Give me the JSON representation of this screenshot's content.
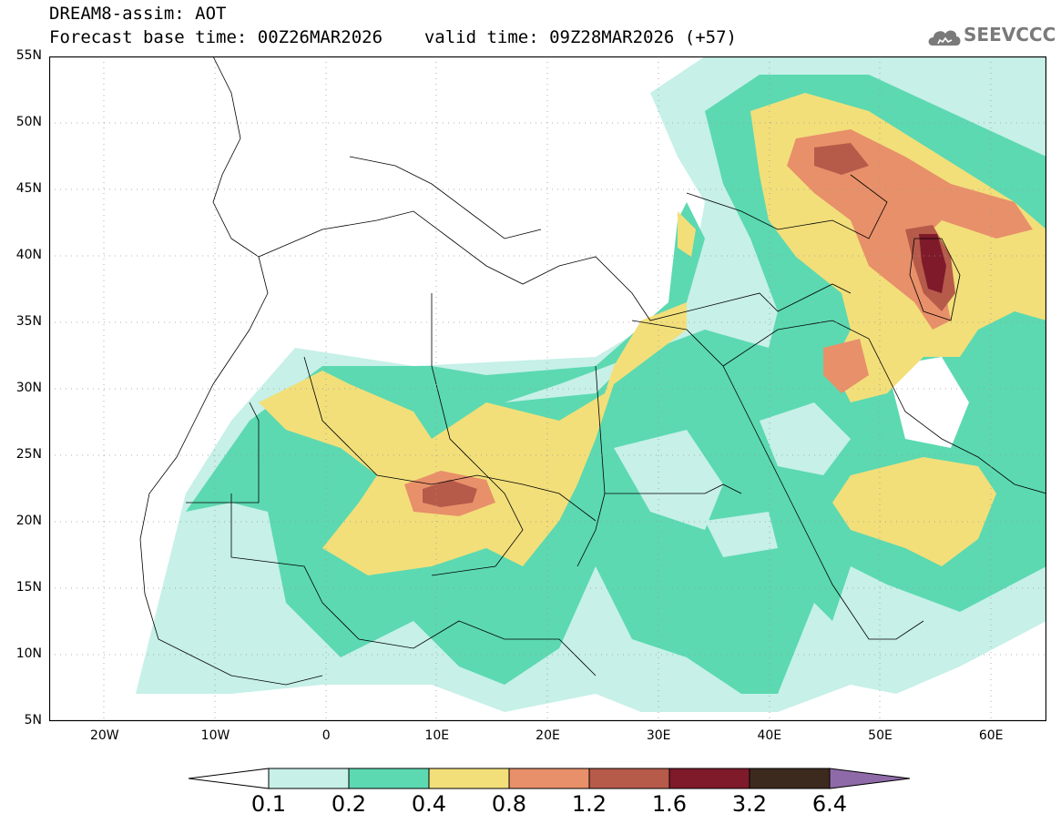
{
  "header": {
    "title_line1": "DREAM8-assim: AOT",
    "base_time_label": "Forecast base time: 00Z26MAR2026",
    "valid_time_label": "valid time: 09Z28MAR2026 (+57)",
    "logo_text": "SEEVCCC"
  },
  "map": {
    "lat_ticks": [
      "55N",
      "50N",
      "45N",
      "40N",
      "35N",
      "30N",
      "25N",
      "20N",
      "15N",
      "10N",
      "5N"
    ],
    "lon_ticks": [
      "20W",
      "10W",
      "0",
      "10E",
      "20E",
      "30E",
      "40E",
      "50E",
      "60E"
    ],
    "lat_values": [
      55,
      50,
      45,
      40,
      35,
      30,
      25,
      20,
      15,
      10,
      5
    ],
    "lon_values": [
      -20,
      -10,
      0,
      10,
      20,
      30,
      40,
      50,
      60
    ],
    "extent": {
      "lon_min": -25,
      "lon_max": 65,
      "lat_min": 5,
      "lat_max": 55
    },
    "grid": "dotted"
  },
  "legend": {
    "labels": [
      "0.1",
      "0.2",
      "0.4",
      "0.8",
      "1.2",
      "1.6",
      "3.2",
      "6.4"
    ],
    "colors": [
      "#ffffff",
      "#c6f0e8",
      "#5cd9b0",
      "#f2df7a",
      "#e8906a",
      "#b65a4a",
      "#7e1a2a",
      "#3d2a1e",
      "#8f6aa8"
    ]
  }
}
